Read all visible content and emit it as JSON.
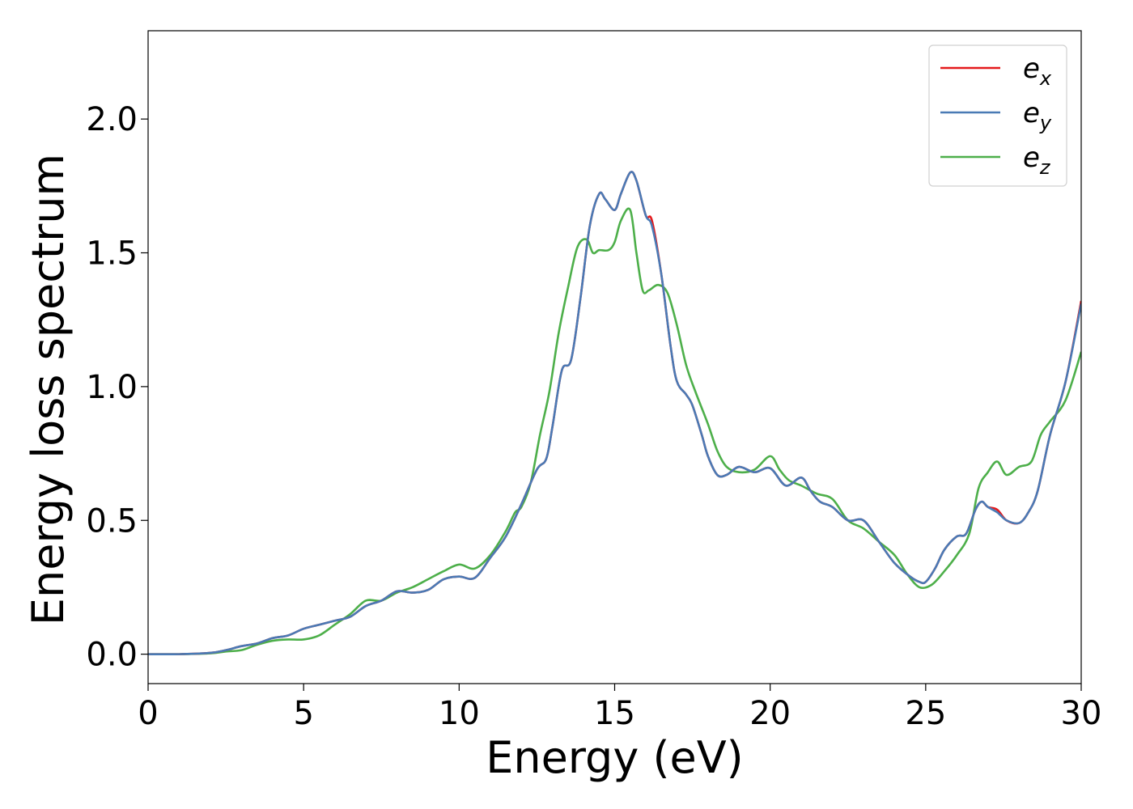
{
  "chart_data": {
    "type": "line",
    "xlabel": "Energy (eV)",
    "ylabel": "Energy loss spectrum",
    "xlim": [
      0,
      30
    ],
    "ylim": [
      -0.11,
      2.33
    ],
    "xticks": [
      0,
      5,
      10,
      15,
      20,
      25,
      30
    ],
    "xtick_labels": [
      "0",
      "5",
      "10",
      "15",
      "20",
      "25",
      "30"
    ],
    "yticks": [
      0.0,
      0.5,
      1.0,
      1.5,
      2.0
    ],
    "ytick_labels": [
      "0.0",
      "0.5",
      "1.0",
      "1.5",
      "2.0"
    ],
    "grid": false,
    "legend_position": "top-right",
    "series": [
      {
        "name": "e",
        "subscript": "x",
        "color": "#e41a1c",
        "x": [
          0,
          1,
          2,
          2.5,
          3,
          3.5,
          4,
          4.5,
          5,
          5.5,
          6,
          6.5,
          7,
          7.5,
          8,
          8.5,
          9,
          9.5,
          10,
          10.5,
          11,
          11.5,
          12,
          12.5,
          12.8,
          13,
          13.3,
          13.6,
          13.9,
          14.2,
          14.5,
          14.7,
          15,
          15.2,
          15.5,
          15.7,
          16,
          16.2,
          16.5,
          16.8,
          17,
          17.3,
          17.5,
          17.8,
          18,
          18.3,
          18.6,
          19,
          19.5,
          20,
          20.5,
          21,
          21.3,
          21.6,
          22,
          22.5,
          23,
          23.5,
          24,
          24.5,
          24.8,
          25,
          25.3,
          25.6,
          26,
          26.3,
          26.6,
          26.8,
          27,
          27.3,
          27.6,
          28,
          28.3,
          28.6,
          29,
          29.5,
          30
        ],
        "y": [
          0.0,
          0.0,
          0.005,
          0.015,
          0.03,
          0.04,
          0.06,
          0.07,
          0.095,
          0.11,
          0.125,
          0.14,
          0.18,
          0.2,
          0.235,
          0.23,
          0.24,
          0.28,
          0.29,
          0.285,
          0.36,
          0.44,
          0.56,
          0.69,
          0.73,
          0.85,
          1.06,
          1.1,
          1.33,
          1.6,
          1.72,
          1.7,
          1.66,
          1.72,
          1.8,
          1.77,
          1.64,
          1.62,
          1.42,
          1.15,
          1.02,
          0.97,
          0.93,
          0.82,
          0.74,
          0.67,
          0.67,
          0.7,
          0.68,
          0.695,
          0.63,
          0.66,
          0.61,
          0.57,
          0.55,
          0.5,
          0.5,
          0.42,
          0.34,
          0.29,
          0.27,
          0.27,
          0.32,
          0.39,
          0.44,
          0.45,
          0.54,
          0.57,
          0.55,
          0.54,
          0.5,
          0.49,
          0.53,
          0.61,
          0.82,
          1.02,
          1.32
        ]
      },
      {
        "name": "e",
        "subscript": "y",
        "color": "#4a7ab5",
        "x": [
          0,
          1,
          2,
          2.5,
          3,
          3.5,
          4,
          4.5,
          5,
          5.5,
          6,
          6.5,
          7,
          7.5,
          8,
          8.5,
          9,
          9.5,
          10,
          10.5,
          11,
          11.5,
          12,
          12.5,
          12.8,
          13,
          13.3,
          13.6,
          13.9,
          14.2,
          14.5,
          14.7,
          15,
          15.2,
          15.5,
          15.7,
          16,
          16.2,
          16.5,
          16.8,
          17,
          17.3,
          17.5,
          17.8,
          18,
          18.3,
          18.6,
          19,
          19.5,
          20,
          20.5,
          21,
          21.3,
          21.6,
          22,
          22.5,
          23,
          23.5,
          24,
          24.5,
          24.8,
          25,
          25.3,
          25.6,
          26,
          26.3,
          26.6,
          26.8,
          27,
          27.3,
          27.6,
          28,
          28.3,
          28.6,
          29,
          29.5,
          30
        ],
        "y": [
          0.0,
          0.0,
          0.005,
          0.015,
          0.03,
          0.04,
          0.06,
          0.07,
          0.095,
          0.11,
          0.125,
          0.14,
          0.18,
          0.2,
          0.235,
          0.23,
          0.24,
          0.28,
          0.29,
          0.285,
          0.36,
          0.44,
          0.56,
          0.69,
          0.73,
          0.85,
          1.06,
          1.1,
          1.33,
          1.6,
          1.72,
          1.7,
          1.66,
          1.72,
          1.8,
          1.77,
          1.64,
          1.6,
          1.42,
          1.15,
          1.02,
          0.97,
          0.93,
          0.82,
          0.74,
          0.67,
          0.67,
          0.7,
          0.68,
          0.695,
          0.63,
          0.66,
          0.61,
          0.57,
          0.55,
          0.5,
          0.5,
          0.42,
          0.34,
          0.29,
          0.27,
          0.27,
          0.32,
          0.39,
          0.44,
          0.45,
          0.54,
          0.57,
          0.55,
          0.53,
          0.5,
          0.49,
          0.53,
          0.61,
          0.82,
          1.02,
          1.31
        ]
      },
      {
        "name": "e",
        "subscript": "z",
        "color": "#4daf4a",
        "x": [
          0,
          1,
          2,
          2.5,
          3,
          3.5,
          4,
          4.5,
          5,
          5.5,
          6,
          6.5,
          7,
          7.5,
          8,
          8.5,
          9,
          9.5,
          10,
          10.5,
          11,
          11.5,
          11.8,
          12,
          12.3,
          12.6,
          12.9,
          13.2,
          13.5,
          13.8,
          14.1,
          14.3,
          14.5,
          14.8,
          15,
          15.2,
          15.5,
          15.7,
          15.9,
          16.1,
          16.4,
          16.7,
          17,
          17.3,
          17.6,
          18,
          18.3,
          18.6,
          19,
          19.5,
          20,
          20.3,
          20.6,
          21,
          21.5,
          22,
          22.5,
          23,
          23.5,
          24,
          24.4,
          24.8,
          25.2,
          25.6,
          26,
          26.4,
          26.7,
          27,
          27.3,
          27.6,
          28,
          28.4,
          28.7,
          29,
          29.5,
          30
        ],
        "y": [
          0.0,
          0.0,
          0.003,
          0.01,
          0.015,
          0.035,
          0.05,
          0.055,
          0.055,
          0.07,
          0.11,
          0.15,
          0.2,
          0.2,
          0.23,
          0.25,
          0.28,
          0.31,
          0.335,
          0.32,
          0.37,
          0.46,
          0.53,
          0.55,
          0.64,
          0.82,
          0.98,
          1.2,
          1.37,
          1.52,
          1.55,
          1.5,
          1.51,
          1.51,
          1.54,
          1.62,
          1.66,
          1.5,
          1.36,
          1.36,
          1.38,
          1.35,
          1.23,
          1.08,
          0.98,
          0.86,
          0.76,
          0.7,
          0.68,
          0.69,
          0.74,
          0.69,
          0.65,
          0.63,
          0.6,
          0.58,
          0.5,
          0.47,
          0.42,
          0.37,
          0.3,
          0.25,
          0.26,
          0.31,
          0.37,
          0.45,
          0.62,
          0.68,
          0.72,
          0.67,
          0.7,
          0.72,
          0.82,
          0.87,
          0.95,
          1.13
        ]
      }
    ]
  }
}
